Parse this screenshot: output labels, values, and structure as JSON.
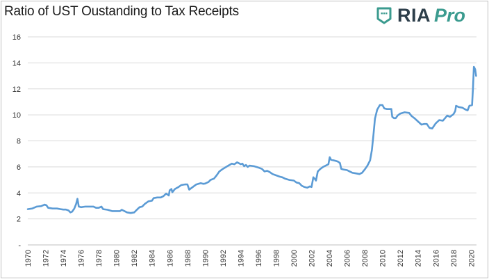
{
  "chart_data": {
    "type": "line",
    "title": "Ratio of UST Oustanding to Tax Receipts",
    "xlabel": "",
    "ylabel": "",
    "ylim": [
      0,
      16
    ],
    "xlim": [
      1970,
      2020.6
    ],
    "y_ticks": [
      {
        "value": 0,
        "label": "-"
      },
      {
        "value": 2,
        "label": "2"
      },
      {
        "value": 4,
        "label": "4"
      },
      {
        "value": 6,
        "label": "6"
      },
      {
        "value": 8,
        "label": "8"
      },
      {
        "value": 10,
        "label": "10"
      },
      {
        "value": 12,
        "label": "12"
      },
      {
        "value": 14,
        "label": "14"
      },
      {
        "value": 16,
        "label": "16"
      }
    ],
    "x_ticks": [
      1970,
      1972,
      1974,
      1976,
      1978,
      1980,
      1982,
      1984,
      1986,
      1988,
      1990,
      1992,
      1994,
      1996,
      1998,
      2000,
      2002,
      2004,
      2006,
      2008,
      2010,
      2012,
      2014,
      2016,
      2018,
      2020
    ],
    "grid": true,
    "series": [
      {
        "name": "Ratio of UST Outstanding to Tax Receipts",
        "color": "#5b9bd5",
        "points": [
          [
            1970.0,
            2.75
          ],
          [
            1970.5,
            2.8
          ],
          [
            1971.0,
            2.95
          ],
          [
            1971.5,
            2.98
          ],
          [
            1971.9,
            3.1
          ],
          [
            1972.1,
            3.05
          ],
          [
            1972.3,
            2.85
          ],
          [
            1972.8,
            2.8
          ],
          [
            1973.3,
            2.8
          ],
          [
            1973.7,
            2.75
          ],
          [
            1974.0,
            2.72
          ],
          [
            1974.3,
            2.72
          ],
          [
            1974.6,
            2.65
          ],
          [
            1974.8,
            2.5
          ],
          [
            1975.0,
            2.55
          ],
          [
            1975.25,
            2.8
          ],
          [
            1975.45,
            3.15
          ],
          [
            1975.6,
            3.55
          ],
          [
            1975.75,
            2.95
          ],
          [
            1976.0,
            2.9
          ],
          [
            1976.5,
            2.95
          ],
          [
            1977.0,
            2.95
          ],
          [
            1977.4,
            2.95
          ],
          [
            1977.7,
            2.85
          ],
          [
            1978.0,
            2.85
          ],
          [
            1978.3,
            2.95
          ],
          [
            1978.5,
            2.75
          ],
          [
            1979.0,
            2.7
          ],
          [
            1979.5,
            2.6
          ],
          [
            1980.0,
            2.6
          ],
          [
            1980.4,
            2.6
          ],
          [
            1980.6,
            2.7
          ],
          [
            1980.9,
            2.6
          ],
          [
            1981.2,
            2.5
          ],
          [
            1981.6,
            2.45
          ],
          [
            1982.0,
            2.5
          ],
          [
            1982.3,
            2.7
          ],
          [
            1982.6,
            2.9
          ],
          [
            1982.9,
            2.95
          ],
          [
            1983.2,
            3.15
          ],
          [
            1983.6,
            3.35
          ],
          [
            1984.0,
            3.4
          ],
          [
            1984.2,
            3.6
          ],
          [
            1984.6,
            3.65
          ],
          [
            1985.0,
            3.65
          ],
          [
            1985.3,
            3.75
          ],
          [
            1985.6,
            3.95
          ],
          [
            1985.9,
            3.8
          ],
          [
            1986.0,
            4.2
          ],
          [
            1986.2,
            4.3
          ],
          [
            1986.3,
            4.05
          ],
          [
            1986.6,
            4.3
          ],
          [
            1987.0,
            4.45
          ],
          [
            1987.3,
            4.6
          ],
          [
            1987.7,
            4.65
          ],
          [
            1988.0,
            4.65
          ],
          [
            1988.2,
            4.25
          ],
          [
            1988.6,
            4.45
          ],
          [
            1989.0,
            4.65
          ],
          [
            1989.5,
            4.75
          ],
          [
            1989.8,
            4.7
          ],
          [
            1990.0,
            4.72
          ],
          [
            1990.4,
            4.85
          ],
          [
            1990.6,
            5.0
          ],
          [
            1991.0,
            5.1
          ],
          [
            1991.3,
            5.35
          ],
          [
            1991.6,
            5.65
          ],
          [
            1992.0,
            5.85
          ],
          [
            1992.5,
            6.05
          ],
          [
            1993.0,
            6.25
          ],
          [
            1993.3,
            6.2
          ],
          [
            1993.6,
            6.35
          ],
          [
            1993.9,
            6.25
          ],
          [
            1994.0,
            6.2
          ],
          [
            1994.2,
            6.25
          ],
          [
            1994.4,
            6.05
          ],
          [
            1994.6,
            6.15
          ],
          [
            1994.8,
            6.0
          ],
          [
            1995.0,
            6.1
          ],
          [
            1995.5,
            6.05
          ],
          [
            1996.0,
            5.95
          ],
          [
            1996.4,
            5.85
          ],
          [
            1996.7,
            5.65
          ],
          [
            1997.0,
            5.7
          ],
          [
            1997.3,
            5.6
          ],
          [
            1997.6,
            5.45
          ],
          [
            1998.0,
            5.35
          ],
          [
            1998.4,
            5.25
          ],
          [
            1998.7,
            5.2
          ],
          [
            1999.0,
            5.1
          ],
          [
            1999.5,
            5.0
          ],
          [
            2000.0,
            4.95
          ],
          [
            2000.3,
            4.8
          ],
          [
            2000.6,
            4.75
          ],
          [
            2000.9,
            4.55
          ],
          [
            2001.2,
            4.45
          ],
          [
            2001.5,
            4.4
          ],
          [
            2001.8,
            4.5
          ],
          [
            2002.0,
            4.45
          ],
          [
            2002.2,
            5.2
          ],
          [
            2002.4,
            5.05
          ],
          [
            2002.5,
            4.95
          ],
          [
            2002.7,
            5.65
          ],
          [
            2003.0,
            5.85
          ],
          [
            2003.3,
            6.0
          ],
          [
            2003.6,
            6.1
          ],
          [
            2003.9,
            6.2
          ],
          [
            2004.05,
            6.75
          ],
          [
            2004.2,
            6.55
          ],
          [
            2004.5,
            6.5
          ],
          [
            2004.8,
            6.45
          ],
          [
            2005.0,
            6.4
          ],
          [
            2005.2,
            6.3
          ],
          [
            2005.35,
            5.85
          ],
          [
            2005.6,
            5.8
          ],
          [
            2006.0,
            5.75
          ],
          [
            2006.3,
            5.65
          ],
          [
            2006.6,
            5.55
          ],
          [
            2007.0,
            5.5
          ],
          [
            2007.4,
            5.45
          ],
          [
            2007.7,
            5.55
          ],
          [
            2008.0,
            5.8
          ],
          [
            2008.3,
            6.1
          ],
          [
            2008.6,
            6.5
          ],
          [
            2008.8,
            7.3
          ],
          [
            2009.0,
            8.6
          ],
          [
            2009.15,
            9.7
          ],
          [
            2009.4,
            10.4
          ],
          [
            2009.7,
            10.75
          ],
          [
            2010.0,
            10.75
          ],
          [
            2010.2,
            10.5
          ],
          [
            2010.5,
            10.45
          ],
          [
            2010.8,
            10.45
          ],
          [
            2011.0,
            10.45
          ],
          [
            2011.1,
            9.85
          ],
          [
            2011.3,
            9.75
          ],
          [
            2011.5,
            9.75
          ],
          [
            2011.7,
            9.95
          ],
          [
            2012.0,
            10.1
          ],
          [
            2012.5,
            10.2
          ],
          [
            2013.0,
            10.15
          ],
          [
            2013.3,
            9.9
          ],
          [
            2013.6,
            9.75
          ],
          [
            2014.0,
            9.5
          ],
          [
            2014.4,
            9.25
          ],
          [
            2014.7,
            9.3
          ],
          [
            2015.0,
            9.3
          ],
          [
            2015.3,
            9.0
          ],
          [
            2015.6,
            8.95
          ],
          [
            2016.0,
            9.35
          ],
          [
            2016.4,
            9.6
          ],
          [
            2016.8,
            9.55
          ],
          [
            2017.0,
            9.7
          ],
          [
            2017.3,
            9.95
          ],
          [
            2017.6,
            9.85
          ],
          [
            2018.0,
            10.05
          ],
          [
            2018.2,
            10.3
          ],
          [
            2018.3,
            10.7
          ],
          [
            2018.6,
            10.6
          ],
          [
            2019.0,
            10.55
          ],
          [
            2019.4,
            10.4
          ],
          [
            2019.6,
            10.35
          ],
          [
            2019.8,
            10.7
          ],
          [
            2020.1,
            10.75
          ],
          [
            2020.2,
            12.0
          ],
          [
            2020.3,
            13.7
          ],
          [
            2020.45,
            13.5
          ],
          [
            2020.55,
            13.0
          ]
        ]
      }
    ]
  },
  "branding": {
    "name": "RIA",
    "suffix": "Pro"
  }
}
